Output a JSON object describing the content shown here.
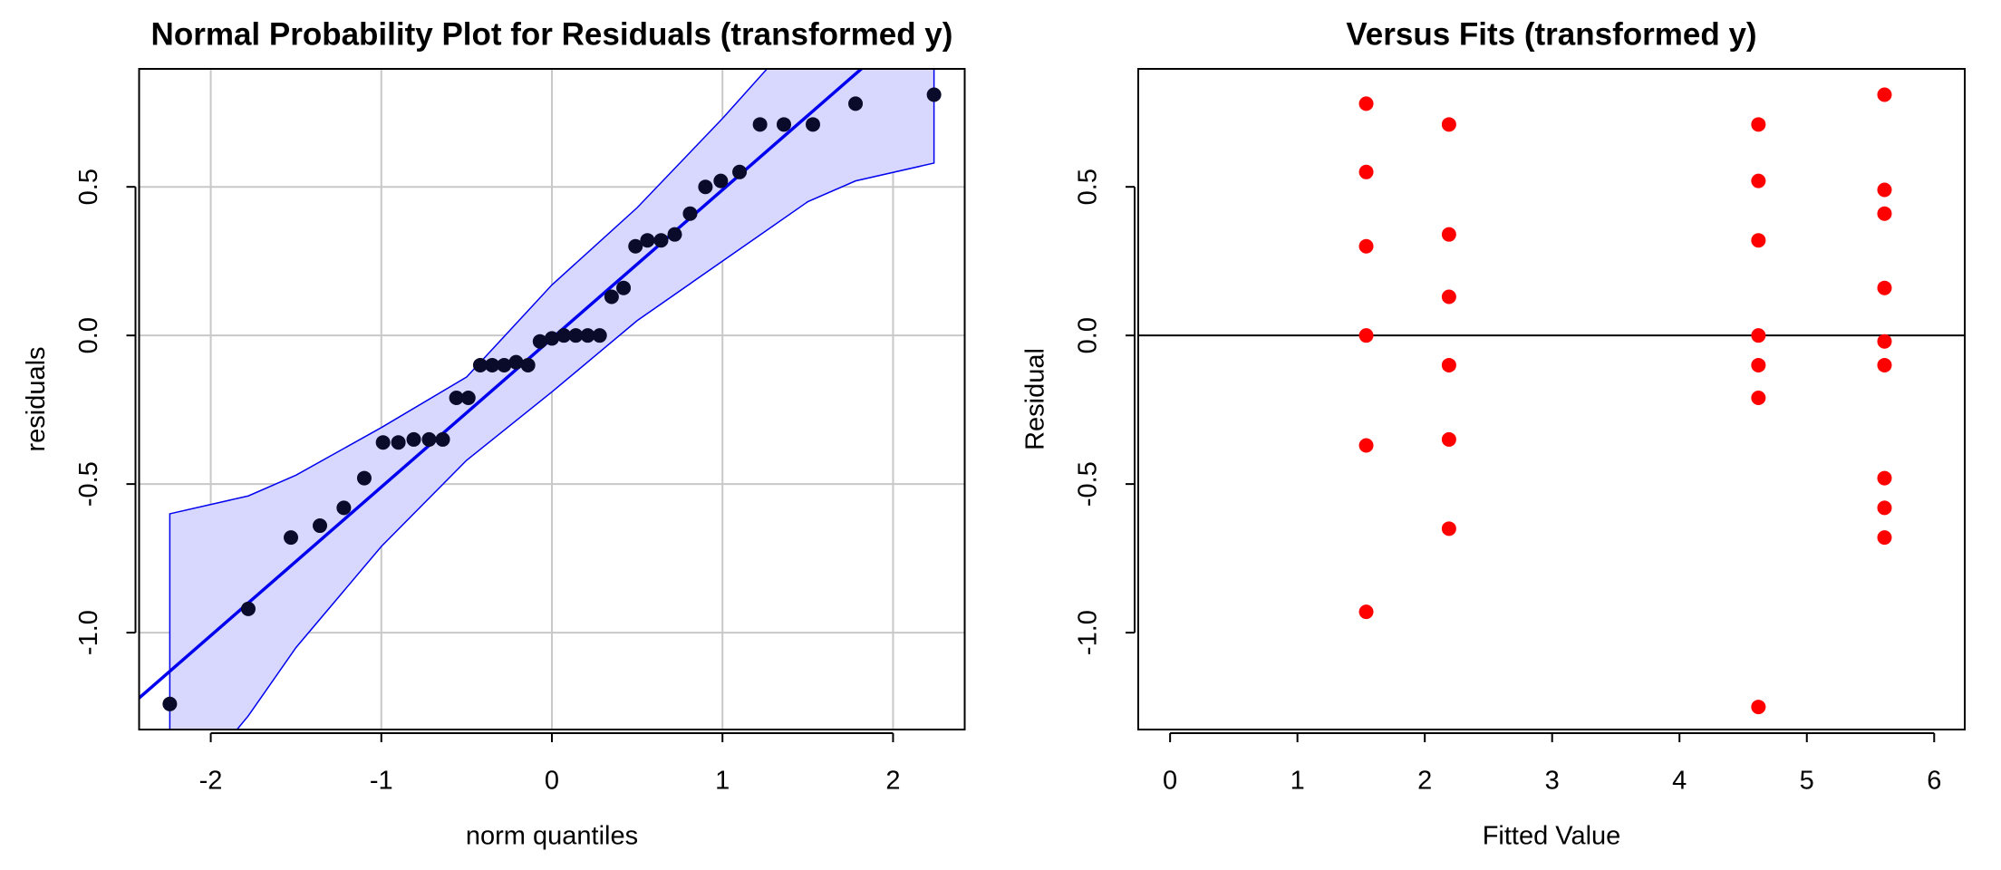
{
  "chart_data": [
    {
      "type": "qq",
      "title": "Normal Probability Plot for Residuals (transformed y)",
      "x_label": "norm quantiles",
      "y_label": "residuals",
      "xlim": [
        -2.42,
        2.42
      ],
      "ylim": [
        -1.326,
        0.897
      ],
      "xticks": [
        -2,
        -1,
        0,
        1,
        2
      ],
      "yticks": [
        {
          "value": -1,
          "label": "-1.0"
        },
        {
          "value": -0.5,
          "label": "-0.5"
        },
        {
          "value": 0,
          "label": "0.0"
        },
        {
          "value": 0.5,
          "label": "0.5"
        }
      ],
      "grid": true,
      "color": "#0a0a2a",
      "line_color": "#0000ee",
      "band_color": "#d8d8ff",
      "x": [
        -2.24,
        -1.78,
        -1.53,
        -1.36,
        -1.22,
        -1.1,
        -0.99,
        -0.9,
        -0.81,
        -0.72,
        -0.64,
        -0.56,
        -0.49,
        -0.42,
        -0.35,
        -0.28,
        -0.21,
        -0.14,
        -0.07,
        0,
        0.07,
        0.14,
        0.21,
        0.28,
        0.35,
        0.42,
        0.49,
        0.56,
        0.64,
        0.72,
        0.81,
        0.9,
        0.99,
        1.1,
        1.22,
        1.36,
        1.53,
        1.78,
        2.24
      ],
      "values": [
        -1.24,
        -0.92,
        -0.68,
        -0.64,
        -0.58,
        -0.48,
        -0.36,
        -0.36,
        -0.35,
        -0.35,
        -0.35,
        -0.21,
        -0.21,
        -0.1,
        -0.1,
        -0.1,
        -0.09,
        -0.1,
        -0.02,
        -0.01,
        0,
        0,
        0,
        0,
        0.13,
        0.16,
        0.3,
        0.32,
        0.32,
        0.34,
        0.41,
        0.5,
        0.52,
        0.55,
        0.71,
        0.71,
        0.71,
        0.78,
        0.81
      ],
      "fit_line": {
        "intercept": -0.01,
        "slope": 0.5
      },
      "band": {
        "x": [
          -2.24,
          -1.78,
          -1.5,
          -1,
          -0.5,
          0,
          0.5,
          1,
          1.5,
          1.78,
          2.24
        ],
        "upper": [
          -0.6,
          -0.54,
          -0.47,
          -0.31,
          -0.14,
          0.17,
          0.43,
          0.73,
          1.05,
          1.25,
          1.6
        ],
        "lower": [
          -1.6,
          -1.28,
          -1.05,
          -0.71,
          -0.42,
          -0.19,
          0.05,
          0.25,
          0.45,
          0.52,
          0.58
        ]
      }
    },
    {
      "type": "scatter",
      "title": "Versus Fits (transformed y)",
      "x_label": "Fitted Value",
      "y_label": "Residual",
      "xlim": [
        -0.25,
        6.24
      ],
      "ylim": [
        -1.326,
        0.897
      ],
      "xticks": [
        0,
        1,
        2,
        3,
        4,
        5,
        6
      ],
      "yticks": [
        {
          "value": -1,
          "label": "-1.0"
        },
        {
          "value": -0.5,
          "label": "-0.5"
        },
        {
          "value": 0,
          "label": "0.0"
        },
        {
          "value": 0.5,
          "label": "0.5"
        }
      ],
      "grid": false,
      "hline": 0,
      "color": "#ff0000",
      "x": [
        1.54,
        1.54,
        1.54,
        1.54,
        1.54,
        1.54,
        2.19,
        2.19,
        2.19,
        2.19,
        2.19,
        2.19,
        4.62,
        4.62,
        4.62,
        4.62,
        4.62,
        4.62,
        4.62,
        5.61,
        5.61,
        5.61,
        5.61,
        5.61,
        5.61,
        5.61,
        5.61,
        5.61
      ],
      "values": [
        0.78,
        0.55,
        0.3,
        0,
        -0.37,
        -0.93,
        0.71,
        0.34,
        0.13,
        -0.1,
        -0.35,
        -0.65,
        0.71,
        0.52,
        0.32,
        0,
        -0.1,
        -0.21,
        -1.25,
        0.81,
        0.49,
        0.41,
        0.16,
        -0.02,
        -0.1,
        -0.48,
        -0.58,
        -0.68
      ]
    }
  ]
}
